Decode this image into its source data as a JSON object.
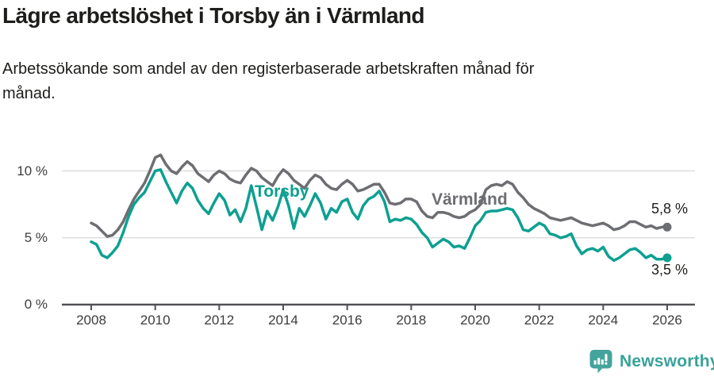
{
  "header": {
    "title": "Lägre arbetslöshet i Torsby än i Värmland",
    "subtitle_line1": "Arbetssökande som andel av den registerbaserade arbetskraften månad för",
    "subtitle_line2": "månad."
  },
  "chart_data": {
    "type": "line",
    "title": "Lägre arbetslöshet i Torsby än i Värmland",
    "subtitle": "Arbetssökande som andel av den registerbaserade arbetskraften månad för månad.",
    "unit": "%",
    "x_start_year": 2008,
    "x_end_year": 2026,
    "points_per_year": 6,
    "grid": "horizontal",
    "legend_position": "inline-labels",
    "ylim": [
      0,
      11.8
    ],
    "y_ticks": [
      {
        "value": 0,
        "label": "0 %"
      },
      {
        "value": 5,
        "label": "5 %"
      },
      {
        "value": 10,
        "label": "10 %"
      }
    ],
    "x_tick_labels": [
      "2008",
      "2010",
      "2012",
      "2014",
      "2016",
      "2018",
      "2020",
      "2022",
      "2024",
      "2026"
    ],
    "series": [
      {
        "name": "Torsby",
        "color": "#0da091",
        "end_value": 3.5,
        "end_label": "3,5 %",
        "values": [
          4.7,
          4.5,
          3.7,
          3.5,
          3.9,
          4.4,
          5.4,
          6.6,
          7.5,
          8.0,
          8.4,
          9.2,
          10.0,
          10.1,
          9.2,
          8.4,
          7.6,
          8.5,
          9.1,
          8.7,
          7.8,
          7.2,
          6.8,
          7.6,
          8.3,
          7.8,
          6.7,
          7.1,
          6.2,
          7.2,
          8.9,
          7.3,
          5.6,
          7.0,
          6.3,
          7.3,
          8.6,
          7.4,
          5.7,
          7.2,
          6.6,
          7.4,
          8.3,
          7.6,
          6.4,
          7.2,
          6.9,
          7.7,
          7.9,
          6.9,
          6.4,
          7.4,
          7.9,
          8.1,
          8.5,
          7.7,
          6.2,
          6.4,
          6.3,
          6.5,
          6.4,
          6.0,
          5.4,
          5.0,
          4.3,
          4.6,
          4.9,
          4.7,
          4.3,
          4.4,
          4.2,
          5.0,
          5.9,
          6.3,
          6.9,
          7.0,
          7.0,
          7.1,
          7.2,
          7.1,
          6.5,
          5.6,
          5.5,
          5.8,
          6.1,
          5.9,
          5.3,
          5.2,
          5.0,
          5.1,
          5.3,
          4.4,
          3.8,
          4.1,
          4.2,
          4.0,
          4.3,
          3.6,
          3.3,
          3.5,
          3.8,
          4.1,
          4.2,
          3.9,
          3.5,
          3.7,
          3.4,
          3.4,
          3.5
        ]
      },
      {
        "name": "Värmland",
        "color": "#6d6e72",
        "end_value": 5.8,
        "end_label": "5,8 %",
        "values": [
          6.1,
          5.9,
          5.5,
          5.1,
          5.2,
          5.6,
          6.2,
          7.1,
          7.9,
          8.5,
          9.1,
          10.0,
          11.0,
          11.2,
          10.5,
          10.0,
          9.8,
          10.3,
          10.7,
          10.4,
          9.8,
          9.5,
          9.2,
          9.7,
          10.0,
          9.8,
          9.4,
          9.2,
          9.1,
          9.7,
          10.2,
          10.0,
          9.5,
          9.2,
          8.9,
          9.6,
          10.1,
          9.8,
          9.3,
          9.0,
          8.7,
          9.3,
          9.7,
          9.5,
          9.0,
          8.7,
          8.6,
          9.0,
          9.3,
          9.0,
          8.5,
          8.6,
          8.8,
          9.0,
          9.0,
          8.4,
          7.6,
          7.5,
          7.6,
          7.9,
          7.9,
          7.7,
          7.0,
          6.6,
          6.5,
          6.9,
          6.9,
          6.8,
          6.6,
          6.5,
          6.6,
          6.9,
          7.1,
          7.5,
          8.6,
          8.9,
          9.0,
          8.9,
          9.2,
          9.0,
          8.4,
          8.0,
          7.5,
          7.2,
          7.0,
          6.8,
          6.5,
          6.4,
          6.3,
          6.4,
          6.5,
          6.3,
          6.1,
          6.0,
          5.9,
          6.0,
          6.1,
          5.9,
          5.6,
          5.7,
          5.9,
          6.2,
          6.2,
          6.0,
          5.8,
          5.9,
          5.7,
          5.8,
          5.8
        ]
      }
    ]
  },
  "footer": {
    "brand": "Newsworthy",
    "brand_color": "#38a29a",
    "logo_icon": "bar-chart-speech-bubble"
  }
}
